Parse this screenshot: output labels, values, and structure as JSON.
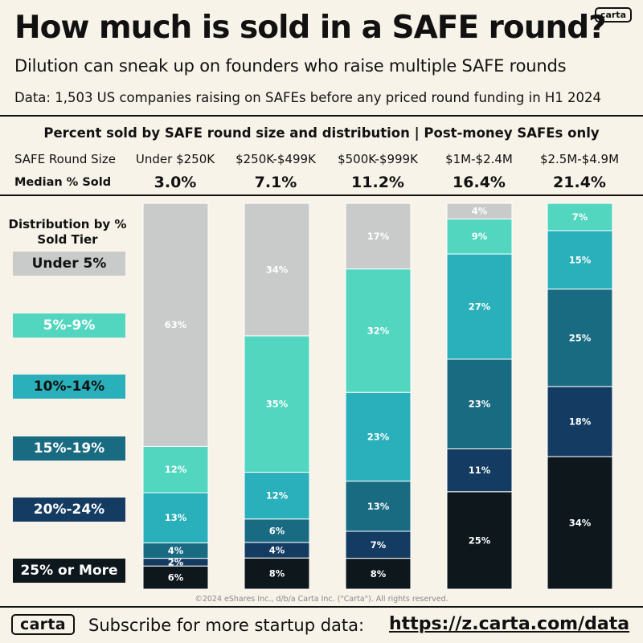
{
  "header": {
    "title": "How much is sold in a SAFE round?",
    "subtitle": "Dilution can sneak up on founders who raise multiple SAFE rounds",
    "data_note": "Data: 1,503 US companies raising on SAFEs before any priced round funding in H1 2024",
    "logo": "carta"
  },
  "table": {
    "round_size_label": "SAFE Round Size",
    "median_label": "Median % Sold"
  },
  "legend": {
    "title": "Distribution by % Sold Tier",
    "items": [
      "Under 5%",
      "5%-9%",
      "10%-14%",
      "15%-19%",
      "20%-24%",
      "25% or More"
    ]
  },
  "colors": {
    "tiers": [
      "#c9cbcb",
      "#52d6c0",
      "#2ab0ba",
      "#196b82",
      "#143b62",
      "#0d171c"
    ],
    "background": "#f8f3e9",
    "text": "#111111"
  },
  "chart_data": {
    "type": "bar",
    "stacked": true,
    "title": "Percent sold by SAFE round size and distribution | Post-money SAFEs only",
    "categories": [
      "Under $250K",
      "$250K-$499K",
      "$500K-$999K",
      "$1M-$2.4M",
      "$2.5M-$4.9M"
    ],
    "medians": [
      "3.0%",
      "7.1%",
      "11.2%",
      "16.4%",
      "21.4%"
    ],
    "series": [
      {
        "name": "Under 5%",
        "values": [
          63,
          34,
          17,
          4,
          0
        ]
      },
      {
        "name": "5%-9%",
        "values": [
          12,
          35,
          32,
          9,
          7
        ]
      },
      {
        "name": "10%-14%",
        "values": [
          13,
          12,
          23,
          27,
          15
        ]
      },
      {
        "name": "15%-19%",
        "values": [
          4,
          6,
          13,
          23,
          25
        ]
      },
      {
        "name": "20%-24%",
        "values": [
          2,
          4,
          7,
          11,
          18
        ]
      },
      {
        "name": "25% or More",
        "values": [
          6,
          8,
          8,
          25,
          34
        ]
      }
    ],
    "ylim": [
      0,
      100
    ]
  },
  "footer": {
    "copyright": "©2024 eShares Inc., d/b/a Carta Inc. (\"Carta\"). All rights reserved.",
    "logo": "carta",
    "cta_text": "Subscribe for more startup data:",
    "cta_link": "https://z.carta.com/data"
  }
}
